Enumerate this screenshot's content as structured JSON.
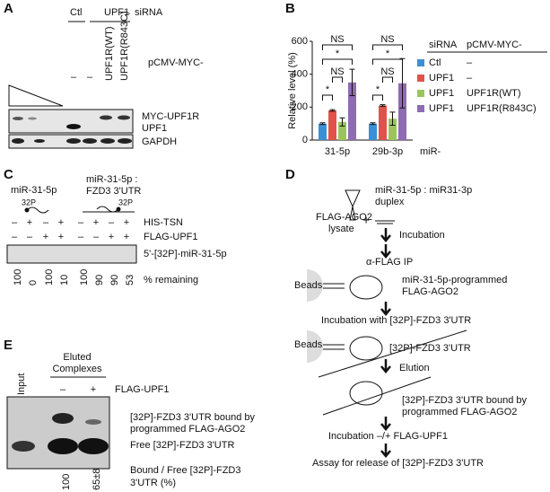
{
  "panel_labels": [
    "A",
    "B",
    "C",
    "D",
    "E"
  ],
  "panel_a": {
    "groups": [
      "Ctl",
      "UPF1"
    ],
    "sirna": "siRNA",
    "plasmid": "pCMV-MYC-",
    "lanes": [
      "–",
      "–",
      "UPF1R(WT)",
      "UPF1R(R843C)"
    ],
    "bands": [
      "MYC-UPF1R",
      "UPF1",
      "GAPDH"
    ]
  },
  "chart_data": {
    "type": "bar",
    "y_label": "Relative level (%)",
    "x_label": "miR-",
    "categories": [
      "31-5p",
      "29b-3p"
    ],
    "legend_headers": [
      "siRNA",
      "pCMV-MYC-"
    ],
    "series": [
      {
        "name": "Ctl",
        "plasmid": "–",
        "color": "#3b8fd4",
        "values": [
          100,
          100
        ],
        "errors": [
          5,
          5
        ]
      },
      {
        "name": "UPF1",
        "plasmid": "–",
        "color": "#e0534a",
        "values": [
          180,
          210
        ],
        "errors": [
          5,
          5
        ]
      },
      {
        "name": "UPF1",
        "plasmid": "UPF1R(WT)",
        "color": "#9bc55a",
        "values": [
          110,
          130
        ],
        "errors": [
          25,
          40
        ]
      },
      {
        "name": "UPF1",
        "plasmid": "UPF1R(R843C)",
        "color": "#8e6bb3",
        "values": [
          350,
          345
        ],
        "errors": [
          80,
          150
        ]
      }
    ],
    "ylim": [
      0,
      600
    ],
    "yticks": [
      0,
      200,
      400,
      600
    ],
    "annotations": [
      "NS",
      "*",
      "NS",
      "*",
      "NS",
      "*",
      "NS",
      "*"
    ]
  },
  "panel_c": {
    "substrates": [
      "miR-31-5p",
      "miR-31-5p :",
      "FZD3 3'UTR"
    ],
    "label32p": "32P",
    "rows": [
      "HIS-TSN",
      "FLAG-UPF1"
    ],
    "his_tsn": [
      "–",
      "+",
      "–",
      "+",
      "–",
      "+",
      "–",
      "+"
    ],
    "flag_upf1": [
      "–",
      "–",
      "+",
      "+",
      "–",
      "–",
      "+",
      "+"
    ],
    "band": "5'-[32P]-miR-31-5p",
    "remaining": [
      100,
      0,
      100,
      10,
      100,
      90,
      90,
      53
    ],
    "remaining_label": "% remaining"
  },
  "panel_d": {
    "texts": [
      "miR-31-5p : miR31-3p",
      "duplex",
      "FLAG-AGO2",
      "lysate",
      "+",
      "Incubation",
      "α-FLAG IP",
      "Beads",
      "miR-31-5p-programmed",
      "FLAG-AGO2",
      "Incubation with [32P]-FZD3 3'UTR",
      "Beads",
      "[32P]-FZD3 3'UTR",
      "Elution",
      "[32P]-FZD3 3'UTR bound by",
      "programmed FLAG-AGO2",
      "Incubation –/+ FLAG-UPF1",
      "Assay for release of [32P]-FZD3 3'UTR"
    ]
  },
  "panel_e": {
    "input": "Input",
    "eluted": [
      "Eluted",
      "Complexes"
    ],
    "signs": [
      "–",
      "+"
    ],
    "row": "FLAG-UPF1",
    "bands": [
      "[32P]-FZD3 3'UTR bound by",
      "programmed FLAG-AGO2",
      "Free [32P]-FZD3 3'UTR"
    ],
    "ratios": [
      100,
      "65±8"
    ],
    "ratio_label": [
      "Bound / Free [32P]-FZD3",
      "3'UTR (%)"
    ]
  }
}
